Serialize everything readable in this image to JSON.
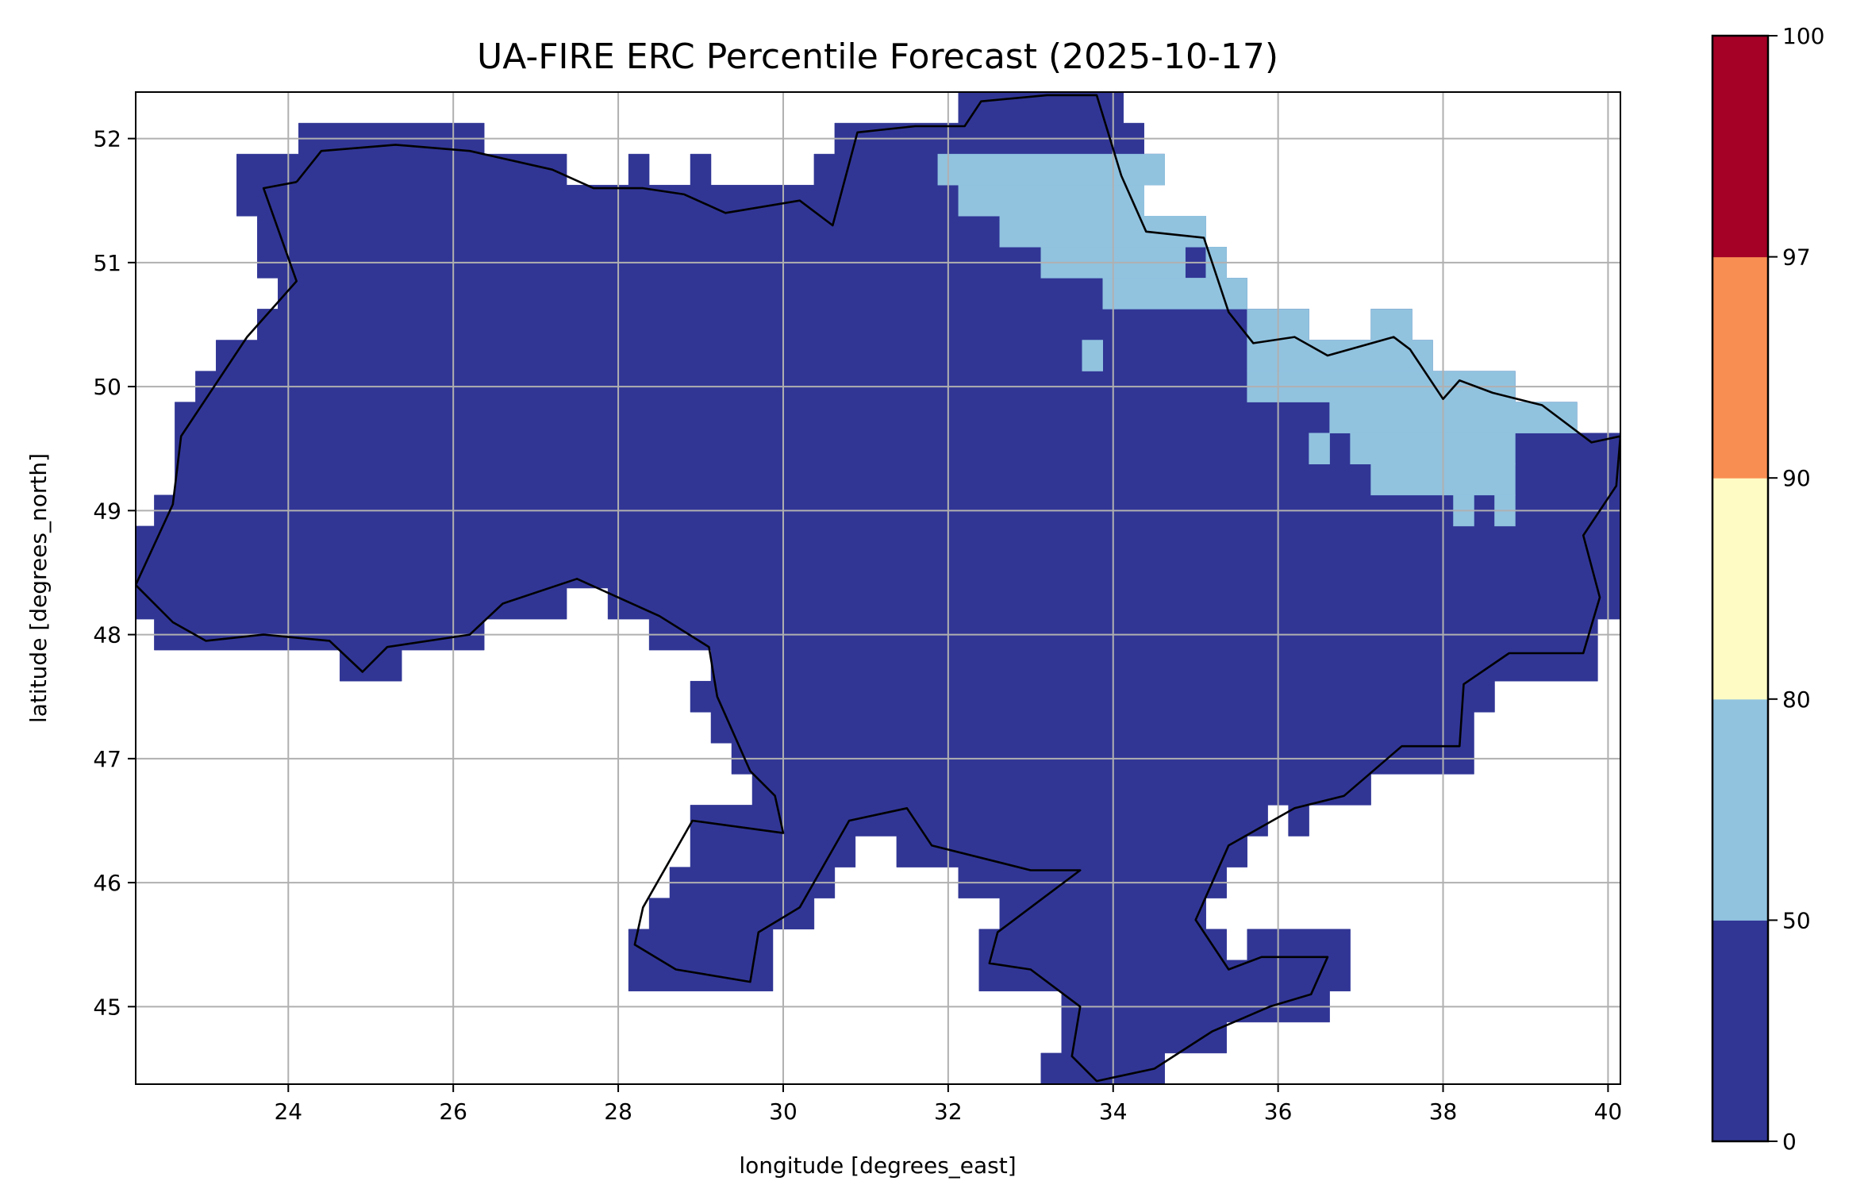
{
  "chart_data": {
    "type": "heatmap",
    "title": "UA-FIRE ERC Percentile Forecast (2025-10-17)",
    "xlabel": "longitude [degrees_east]",
    "ylabel": "latitude [degrees_north]",
    "xlim": [
      22.15,
      40.15
    ],
    "ylim": [
      44.375,
      52.375
    ],
    "xticks": [
      24,
      26,
      28,
      30,
      32,
      34,
      36,
      38,
      40
    ],
    "yticks": [
      45,
      46,
      47,
      48,
      49,
      50,
      51,
      52
    ],
    "xtick_labels": [
      "24",
      "26",
      "28",
      "30",
      "32",
      "34",
      "36",
      "38",
      "40"
    ],
    "ytick_labels": [
      "45",
      "46",
      "47",
      "48",
      "49",
      "50",
      "51",
      "52"
    ],
    "grid": true,
    "grid_resolution_deg": 0.25,
    "colorbar": {
      "position": "right",
      "bounds": [
        0,
        50,
        80,
        90,
        97,
        100
      ],
      "tick_labels": [
        "0",
        "50",
        "80",
        "90",
        "97",
        "100"
      ],
      "colors": [
        "#313695",
        "#91c3df",
        "#fffbc4",
        "#f98e52",
        "#a50026"
      ]
    },
    "regions": [
      {
        "class": "0-50",
        "color": "#313695",
        "polygon_lonlat": [
          [
            23.375,
            51.375
          ],
          [
            23.375,
            51.875
          ],
          [
            24.125,
            51.875
          ],
          [
            24.125,
            52.125
          ],
          [
            26.375,
            52.125
          ],
          [
            26.375,
            51.875
          ],
          [
            27.375,
            51.875
          ],
          [
            27.375,
            51.625
          ],
          [
            28.125,
            51.625
          ],
          [
            28.125,
            51.875
          ],
          [
            28.375,
            51.875
          ],
          [
            28.375,
            51.625
          ],
          [
            28.875,
            51.625
          ],
          [
            28.875,
            51.875
          ],
          [
            29.125,
            51.875
          ],
          [
            29.125,
            51.625
          ],
          [
            30.375,
            51.625
          ],
          [
            30.375,
            51.875
          ],
          [
            30.625,
            51.875
          ],
          [
            30.625,
            52.125
          ],
          [
            32.125,
            52.125
          ],
          [
            32.125,
            52.375
          ],
          [
            34.125,
            52.375
          ],
          [
            34.125,
            52.125
          ],
          [
            34.375,
            52.125
          ],
          [
            34.375,
            51.875
          ],
          [
            34.625,
            51.875
          ],
          [
            34.625,
            51.625
          ],
          [
            34.375,
            51.625
          ],
          [
            34.375,
            51.375
          ],
          [
            35.125,
            51.375
          ],
          [
            35.125,
            51.125
          ],
          [
            35.375,
            51.125
          ],
          [
            35.375,
            50.875
          ],
          [
            35.625,
            50.875
          ],
          [
            35.625,
            50.625
          ],
          [
            36.375,
            50.625
          ],
          [
            36.375,
            50.375
          ],
          [
            37.125,
            50.375
          ],
          [
            37.125,
            50.625
          ],
          [
            37.625,
            50.625
          ],
          [
            37.625,
            50.375
          ],
          [
            37.875,
            50.375
          ],
          [
            37.875,
            50.125
          ],
          [
            38.875,
            50.125
          ],
          [
            38.875,
            49.875
          ],
          [
            39.625,
            49.875
          ],
          [
            39.625,
            49.625
          ],
          [
            40.375,
            49.625
          ],
          [
            40.375,
            48.125
          ],
          [
            39.875,
            48.125
          ],
          [
            39.875,
            47.625
          ],
          [
            38.625,
            47.625
          ],
          [
            38.625,
            47.375
          ],
          [
            38.375,
            47.375
          ],
          [
            38.375,
            46.875
          ],
          [
            37.125,
            46.875
          ],
          [
            37.125,
            46.625
          ],
          [
            36.375,
            46.625
          ],
          [
            36.375,
            46.375
          ],
          [
            36.125,
            46.375
          ],
          [
            36.125,
            46.625
          ],
          [
            35.875,
            46.625
          ],
          [
            35.875,
            46.375
          ],
          [
            35.625,
            46.375
          ],
          [
            35.625,
            46.125
          ],
          [
            35.375,
            46.125
          ],
          [
            35.375,
            45.875
          ],
          [
            35.125,
            45.875
          ],
          [
            35.125,
            45.625
          ],
          [
            35.375,
            45.625
          ],
          [
            35.375,
            45.375
          ],
          [
            35.625,
            45.375
          ],
          [
            35.625,
            45.625
          ],
          [
            36.875,
            45.625
          ],
          [
            36.875,
            45.125
          ],
          [
            36.625,
            45.125
          ],
          [
            36.625,
            44.875
          ],
          [
            35.375,
            44.875
          ],
          [
            35.375,
            44.625
          ],
          [
            34.625,
            44.625
          ],
          [
            34.625,
            44.375
          ],
          [
            33.125,
            44.375
          ],
          [
            33.125,
            44.625
          ],
          [
            33.375,
            44.625
          ],
          [
            33.375,
            45.125
          ],
          [
            32.375,
            45.125
          ],
          [
            32.375,
            45.625
          ],
          [
            32.625,
            45.625
          ],
          [
            32.625,
            45.875
          ],
          [
            32.125,
            45.875
          ],
          [
            32.125,
            46.125
          ],
          [
            31.375,
            46.125
          ],
          [
            31.375,
            46.375
          ],
          [
            30.875,
            46.375
          ],
          [
            30.875,
            46.125
          ],
          [
            30.625,
            46.125
          ],
          [
            30.625,
            45.875
          ],
          [
            30.375,
            45.875
          ],
          [
            30.375,
            45.625
          ],
          [
            29.875,
            45.625
          ],
          [
            29.875,
            45.125
          ],
          [
            28.125,
            45.125
          ],
          [
            28.125,
            45.625
          ],
          [
            28.375,
            45.625
          ],
          [
            28.375,
            45.875
          ],
          [
            28.625,
            45.875
          ],
          [
            28.625,
            46.125
          ],
          [
            28.875,
            46.125
          ],
          [
            28.875,
            46.625
          ],
          [
            29.625,
            46.625
          ],
          [
            29.625,
            46.875
          ],
          [
            29.375,
            46.875
          ],
          [
            29.375,
            47.125
          ],
          [
            29.125,
            47.125
          ],
          [
            29.125,
            47.375
          ],
          [
            28.875,
            47.375
          ],
          [
            28.875,
            47.625
          ],
          [
            29.125,
            47.625
          ],
          [
            29.125,
            47.875
          ],
          [
            28.375,
            47.875
          ],
          [
            28.375,
            48.125
          ],
          [
            27.875,
            48.125
          ],
          [
            27.875,
            48.375
          ],
          [
            27.375,
            48.375
          ],
          [
            27.375,
            48.125
          ],
          [
            26.375,
            48.125
          ],
          [
            26.375,
            47.875
          ],
          [
            25.375,
            47.875
          ],
          [
            25.375,
            47.625
          ],
          [
            24.625,
            47.625
          ],
          [
            24.625,
            47.875
          ],
          [
            22.375,
            47.875
          ],
          [
            22.375,
            48.125
          ],
          [
            22.0,
            48.125
          ],
          [
            22.0,
            48.875
          ],
          [
            22.375,
            48.875
          ],
          [
            22.375,
            49.125
          ],
          [
            22.625,
            49.125
          ],
          [
            22.625,
            49.875
          ],
          [
            22.875,
            49.875
          ],
          [
            22.875,
            50.125
          ],
          [
            23.125,
            50.125
          ],
          [
            23.125,
            50.375
          ],
          [
            23.625,
            50.375
          ],
          [
            23.625,
            50.625
          ],
          [
            23.875,
            50.625
          ],
          [
            23.875,
            50.875
          ],
          [
            23.625,
            50.875
          ],
          [
            23.625,
            51.375
          ]
        ]
      },
      {
        "class": "50-80",
        "color": "#91c3df",
        "cells_lon0_lon1_lat0_lat1": [
          [
            31.875,
            34.625,
            51.625,
            51.875
          ],
          [
            32.125,
            34.375,
            51.375,
            51.625
          ],
          [
            32.625,
            35.125,
            51.125,
            51.375
          ],
          [
            33.125,
            34.875,
            50.875,
            51.125
          ],
          [
            35.125,
            35.375,
            50.875,
            51.125
          ],
          [
            33.875,
            35.625,
            50.625,
            50.875
          ],
          [
            35.625,
            36.375,
            50.375,
            50.625
          ],
          [
            37.125,
            37.625,
            50.375,
            50.625
          ],
          [
            35.625,
            37.875,
            50.125,
            50.375
          ],
          [
            35.625,
            38.875,
            49.875,
            50.125
          ],
          [
            36.625,
            39.625,
            49.625,
            49.875
          ],
          [
            36.375,
            36.625,
            49.375,
            49.625
          ],
          [
            36.875,
            38.875,
            49.375,
            49.625
          ],
          [
            37.125,
            38.875,
            49.125,
            49.375
          ],
          [
            38.125,
            38.375,
            48.875,
            49.125
          ],
          [
            38.625,
            38.875,
            48.875,
            49.125
          ],
          [
            33.625,
            33.875,
            50.125,
            50.375
          ]
        ]
      }
    ],
    "border_lonlat": [
      [
        24.1,
        51.65
      ],
      [
        24.4,
        51.9
      ],
      [
        25.3,
        51.95
      ],
      [
        26.2,
        51.9
      ],
      [
        27.2,
        51.75
      ],
      [
        27.7,
        51.6
      ],
      [
        28.3,
        51.6
      ],
      [
        28.8,
        51.55
      ],
      [
        29.3,
        51.4
      ],
      [
        30.2,
        51.5
      ],
      [
        30.6,
        51.3
      ],
      [
        30.9,
        52.05
      ],
      [
        31.6,
        52.1
      ],
      [
        32.2,
        52.1
      ],
      [
        32.4,
        52.3
      ],
      [
        33.2,
        52.35
      ],
      [
        33.8,
        52.35
      ],
      [
        34.1,
        51.7
      ],
      [
        34.4,
        51.25
      ],
      [
        35.1,
        51.2
      ],
      [
        35.4,
        50.6
      ],
      [
        35.7,
        50.35
      ],
      [
        36.2,
        50.4
      ],
      [
        36.6,
        50.25
      ],
      [
        37.4,
        50.4
      ],
      [
        37.6,
        50.3
      ],
      [
        38.0,
        49.9
      ],
      [
        38.2,
        50.05
      ],
      [
        38.6,
        49.95
      ],
      [
        39.2,
        49.85
      ],
      [
        39.8,
        49.55
      ],
      [
        40.15,
        49.6
      ],
      [
        40.1,
        49.2
      ],
      [
        39.7,
        48.8
      ],
      [
        39.9,
        48.3
      ],
      [
        39.7,
        47.85
      ],
      [
        38.8,
        47.85
      ],
      [
        38.25,
        47.6
      ],
      [
        38.2,
        47.1
      ],
      [
        37.5,
        47.1
      ],
      [
        36.8,
        46.7
      ],
      [
        36.2,
        46.6
      ],
      [
        35.4,
        46.3
      ],
      [
        35.0,
        45.7
      ],
      [
        35.4,
        45.3
      ],
      [
        35.8,
        45.4
      ],
      [
        36.6,
        45.4
      ],
      [
        36.4,
        45.1
      ],
      [
        35.9,
        45.0
      ],
      [
        35.2,
        44.8
      ],
      [
        34.5,
        44.5
      ],
      [
        33.8,
        44.4
      ],
      [
        33.5,
        44.6
      ],
      [
        33.6,
        45.0
      ],
      [
        33.0,
        45.3
      ],
      [
        32.5,
        45.35
      ],
      [
        32.6,
        45.6
      ],
      [
        33.2,
        45.9
      ],
      [
        33.6,
        46.1
      ],
      [
        33.0,
        46.1
      ],
      [
        31.8,
        46.3
      ],
      [
        31.5,
        46.6
      ],
      [
        30.8,
        46.5
      ],
      [
        30.2,
        45.8
      ],
      [
        29.7,
        45.6
      ],
      [
        29.6,
        45.2
      ],
      [
        28.7,
        45.3
      ],
      [
        28.2,
        45.5
      ],
      [
        28.3,
        45.8
      ],
      [
        28.9,
        46.5
      ],
      [
        30.0,
        46.4
      ],
      [
        29.9,
        46.7
      ],
      [
        29.6,
        46.9
      ],
      [
        29.2,
        47.5
      ],
      [
        29.1,
        47.9
      ],
      [
        28.5,
        48.15
      ],
      [
        27.5,
        48.45
      ],
      [
        26.6,
        48.25
      ],
      [
        26.2,
        48.0
      ],
      [
        25.2,
        47.9
      ],
      [
        24.9,
        47.7
      ],
      [
        24.5,
        47.95
      ],
      [
        23.7,
        48.0
      ],
      [
        23.0,
        47.95
      ],
      [
        22.6,
        48.1
      ],
      [
        22.15,
        48.4
      ],
      [
        22.6,
        49.05
      ],
      [
        22.7,
        49.6
      ],
      [
        23.5,
        50.4
      ],
      [
        24.1,
        50.85
      ],
      [
        23.7,
        51.6
      ],
      [
        24.1,
        51.65
      ]
    ]
  }
}
